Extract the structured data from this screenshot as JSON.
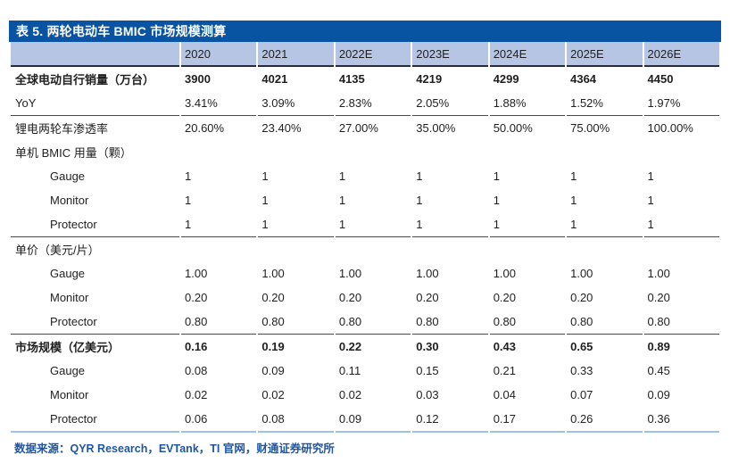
{
  "title": "表 5. 两轮电动车 BMIC 市场规模测算",
  "colors": {
    "title_bar_bg": "#0953A3",
    "header_bg": "#B7C5E5",
    "accent_border": "#9DC3E6",
    "footer_text": "#1F55A3"
  },
  "chart_data": {
    "type": "table",
    "title": "表 5. 两轮电动车 BMIC 市场规模测算",
    "columns": [
      "2020",
      "2021",
      "2022E",
      "2023E",
      "2024E",
      "2025E",
      "2026E"
    ],
    "rows": [
      {
        "label": "全球电动自行销量（万台）",
        "bold": true,
        "indent": false,
        "rule_above": false,
        "values": [
          "3900",
          "4021",
          "4135",
          "4219",
          "4299",
          "4364",
          "4450"
        ]
      },
      {
        "label": "YoY",
        "bold": false,
        "indent": false,
        "rule_above": false,
        "values": [
          "3.41%",
          "3.09%",
          "2.83%",
          "2.05%",
          "1.88%",
          "1.52%",
          "1.97%"
        ]
      },
      {
        "label": "锂电两轮车渗透率",
        "bold": false,
        "indent": false,
        "rule_above": true,
        "values": [
          "20.60%",
          "23.40%",
          "27.00%",
          "35.00%",
          "50.00%",
          "75.00%",
          "100.00%"
        ]
      },
      {
        "label": "单机 BMIC 用量（颗）",
        "bold": false,
        "indent": false,
        "rule_above": false,
        "values": [
          "",
          "",
          "",
          "",
          "",
          "",
          ""
        ]
      },
      {
        "label": "Gauge",
        "bold": false,
        "indent": true,
        "rule_above": false,
        "values": [
          "1",
          "1",
          "1",
          "1",
          "1",
          "1",
          "1"
        ]
      },
      {
        "label": "Monitor",
        "bold": false,
        "indent": true,
        "rule_above": false,
        "values": [
          "1",
          "1",
          "1",
          "1",
          "1",
          "1",
          "1"
        ]
      },
      {
        "label": "Protector",
        "bold": false,
        "indent": true,
        "rule_above": false,
        "values": [
          "1",
          "1",
          "1",
          "1",
          "1",
          "1",
          "1"
        ]
      },
      {
        "label": "单价（美元/片）",
        "bold": false,
        "indent": false,
        "rule_above": true,
        "values": [
          "",
          "",
          "",
          "",
          "",
          "",
          ""
        ]
      },
      {
        "label": "Gauge",
        "bold": false,
        "indent": true,
        "rule_above": false,
        "values": [
          "1.00",
          "1.00",
          "1.00",
          "1.00",
          "1.00",
          "1.00",
          "1.00"
        ]
      },
      {
        "label": "Monitor",
        "bold": false,
        "indent": true,
        "rule_above": false,
        "values": [
          "0.20",
          "0.20",
          "0.20",
          "0.20",
          "0.20",
          "0.20",
          "0.20"
        ]
      },
      {
        "label": "Protector",
        "bold": false,
        "indent": true,
        "rule_above": false,
        "values": [
          "0.80",
          "0.80",
          "0.80",
          "0.80",
          "0.80",
          "0.80",
          "0.80"
        ]
      },
      {
        "label": "市场规模（亿美元）",
        "bold": true,
        "indent": false,
        "rule_above": true,
        "values": [
          "0.16",
          "0.19",
          "0.22",
          "0.30",
          "0.43",
          "0.65",
          "0.89"
        ]
      },
      {
        "label": "Gauge",
        "bold": false,
        "indent": true,
        "rule_above": false,
        "values": [
          "0.08",
          "0.09",
          "0.11",
          "0.15",
          "0.21",
          "0.33",
          "0.45"
        ]
      },
      {
        "label": "Monitor",
        "bold": false,
        "indent": true,
        "rule_above": false,
        "values": [
          "0.02",
          "0.02",
          "0.02",
          "0.03",
          "0.04",
          "0.07",
          "0.09"
        ]
      },
      {
        "label": "Protector",
        "bold": false,
        "indent": true,
        "rule_above": false,
        "values": [
          "0.06",
          "0.08",
          "0.09",
          "0.12",
          "0.17",
          "0.26",
          "0.36"
        ]
      }
    ]
  },
  "footer": {
    "source": "数据来源：QYR Research，EVTank，TI 官网，财通证券研究所"
  }
}
